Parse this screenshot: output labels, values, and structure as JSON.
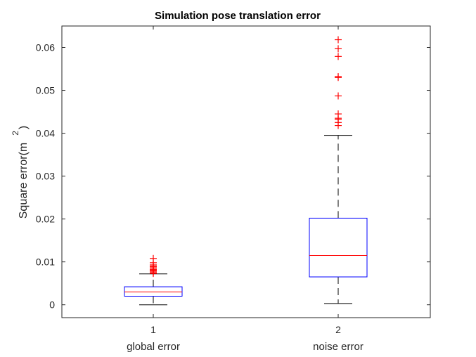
{
  "chart_data": {
    "type": "boxplot",
    "title": "Simulation pose translation error",
    "ylabel_main": "Square error(m",
    "ylabel_sup": "2",
    "ylabel_close": ")",
    "xlabel": "",
    "ylim": [
      -0.003,
      0.065
    ],
    "yticks": [
      0,
      0.01,
      0.02,
      0.03,
      0.04,
      0.05,
      0.06
    ],
    "ytick_labels": [
      "0",
      "0.01",
      "0.02",
      "0.03",
      "0.04",
      "0.05",
      "0.06"
    ],
    "xtick_labels": [
      "1",
      "2"
    ],
    "category_labels": [
      "global error",
      "noise error"
    ],
    "box_color": "#0000ff",
    "median_color": "#ff0000",
    "outlier_color": "#ff0000",
    "whisker_color": "#000000",
    "grid": false,
    "series": [
      {
        "q1": 0.002,
        "median": 0.003,
        "q3": 0.0042,
        "whisker_low": 0.0,
        "whisker_high": 0.0072,
        "outliers": [
          0.0073,
          0.0075,
          0.0078,
          0.008,
          0.0082,
          0.0085,
          0.0088,
          0.009,
          0.0093,
          0.0098,
          0.0108
        ]
      },
      {
        "q1": 0.0065,
        "median": 0.0115,
        "q3": 0.0202,
        "whisker_low": 0.0003,
        "whisker_high": 0.0395,
        "outliers": [
          0.0418,
          0.0425,
          0.0432,
          0.0435,
          0.0445,
          0.0487,
          0.053,
          0.0532,
          0.0579,
          0.0597,
          0.0618
        ]
      }
    ]
  }
}
